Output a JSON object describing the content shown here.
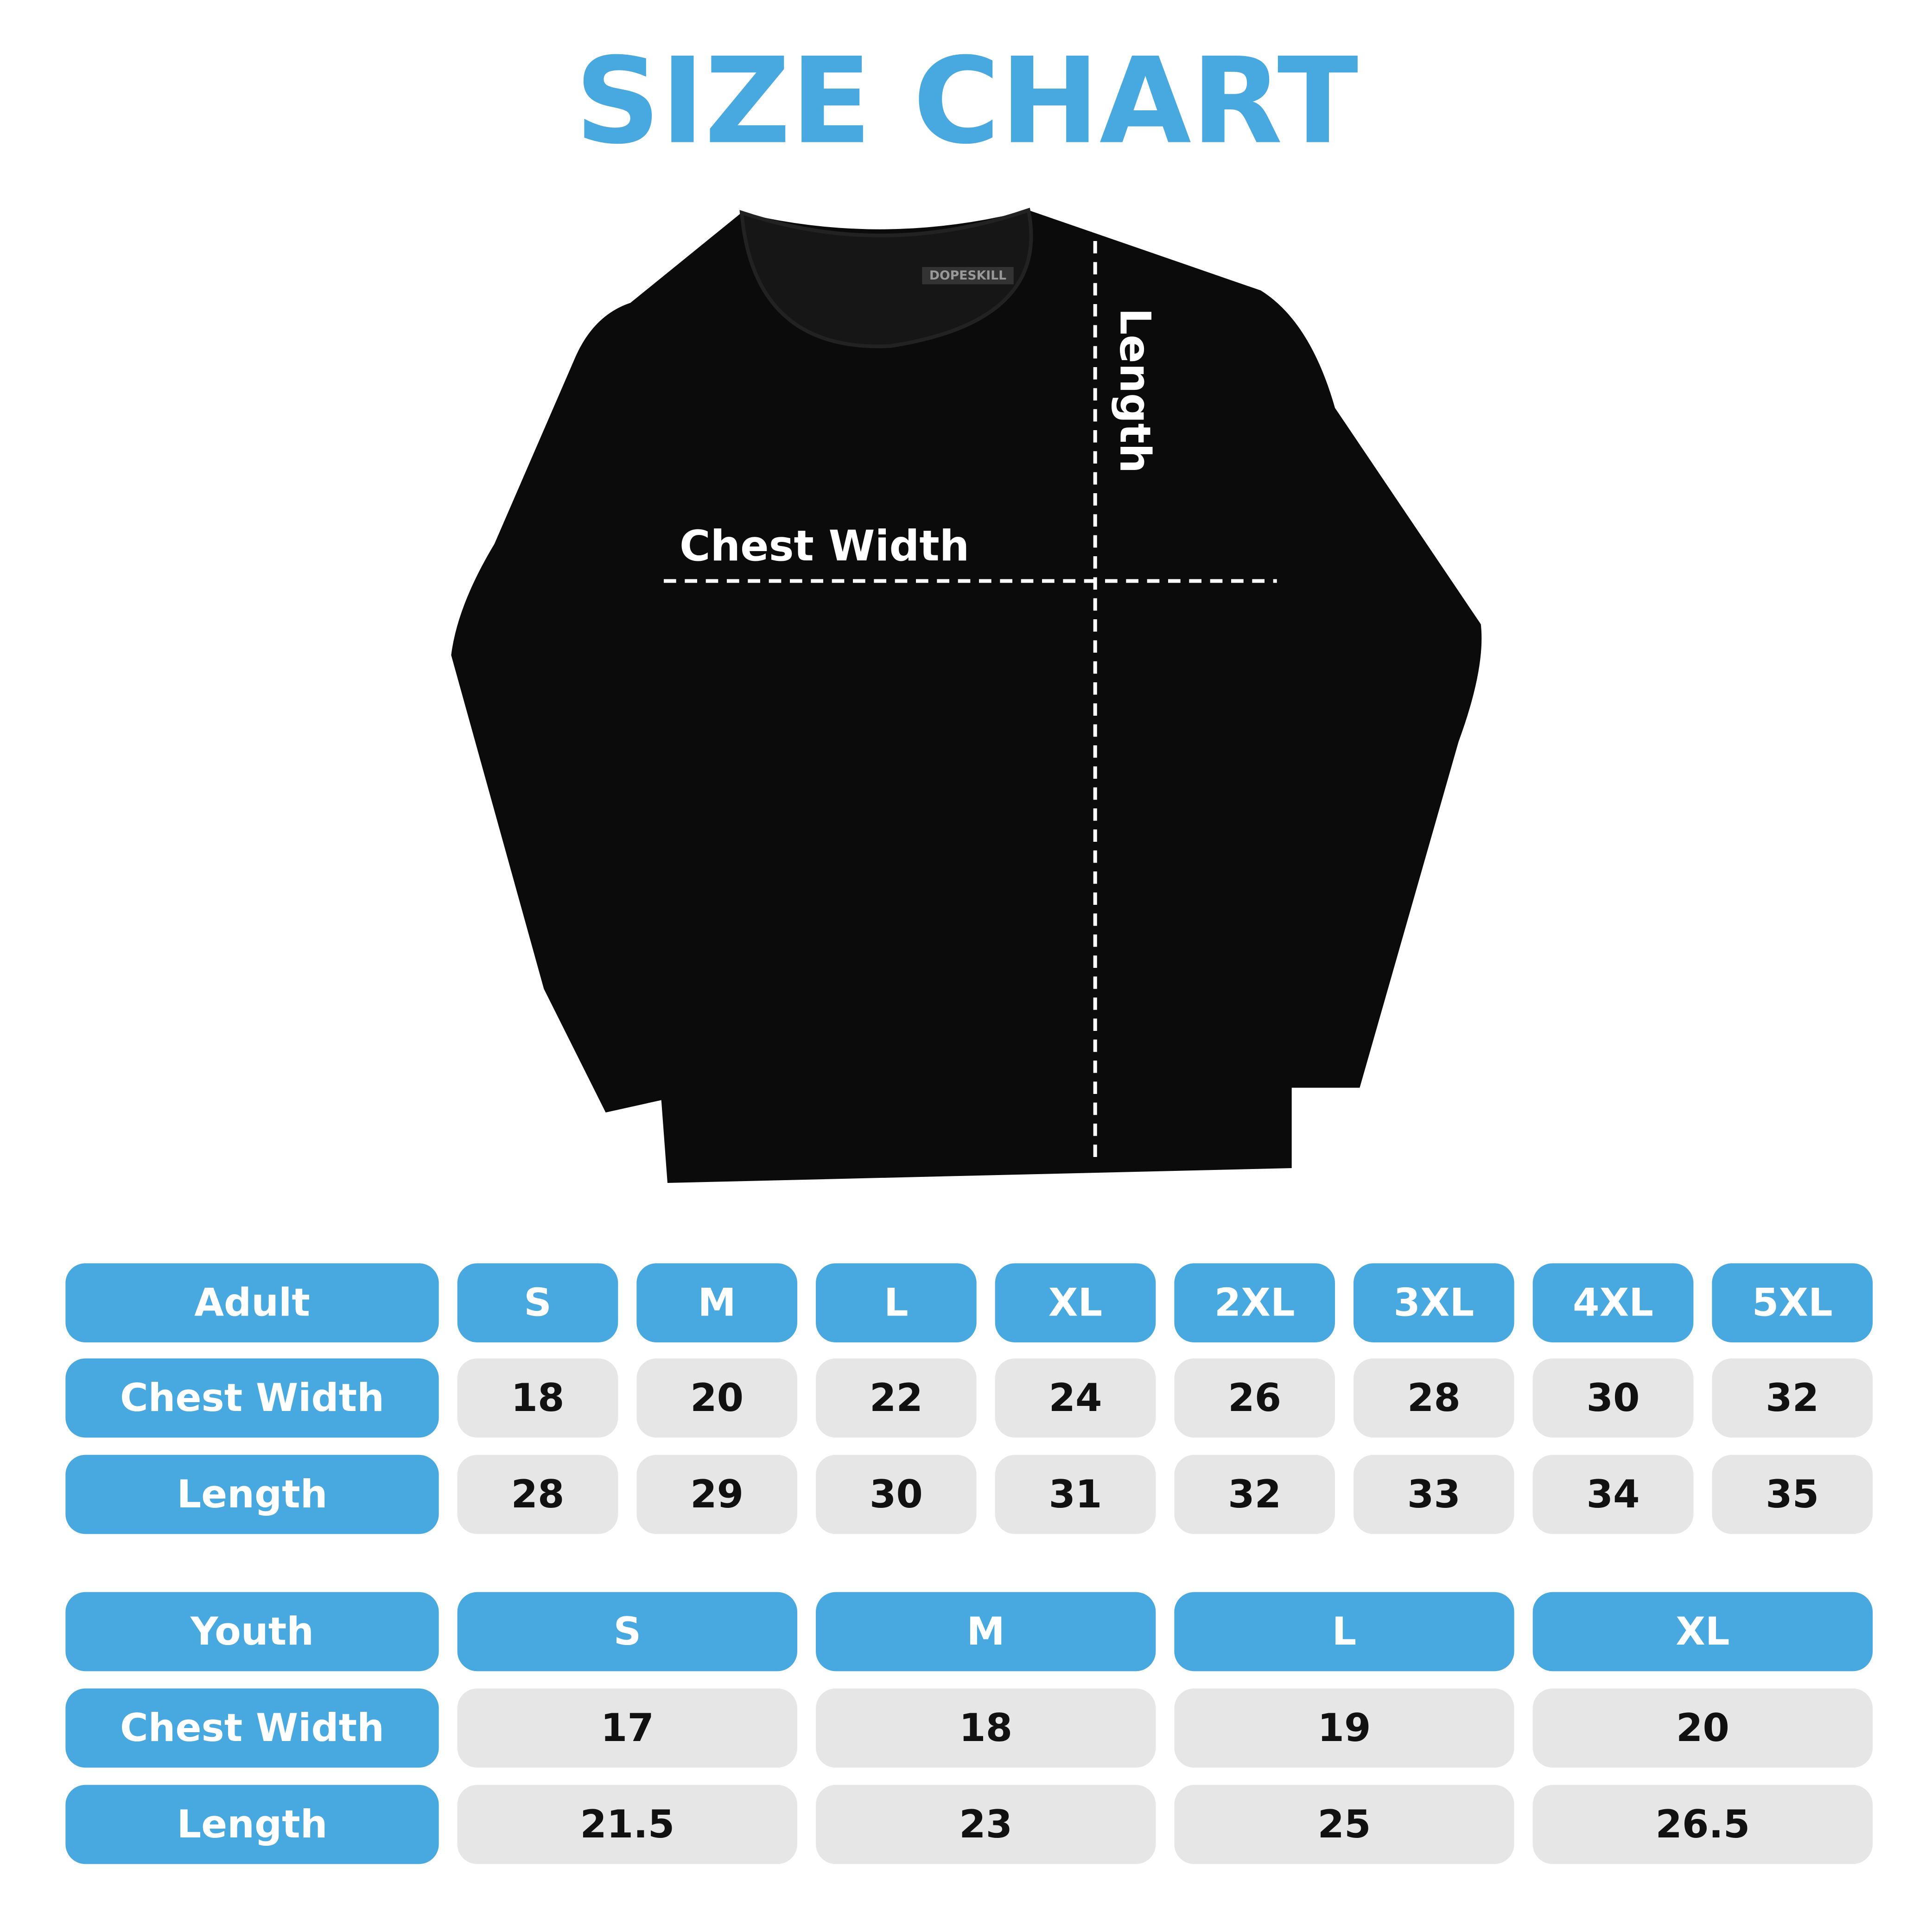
{
  "header": {
    "title": "SIZE CHART"
  },
  "image": {
    "brand": "DOPESKILL",
    "chest_label": "Chest Width",
    "length_label": "Length"
  },
  "tables": [
    {
      "header": [
        "Adult",
        "S",
        "M",
        "L",
        "XL",
        "2XL",
        "3XL",
        "4XL",
        "5XL"
      ],
      "rows": [
        [
          "Chest Width",
          18,
          20,
          22,
          24,
          26,
          28,
          30,
          32
        ],
        [
          "Length",
          28,
          29,
          30,
          31,
          32,
          33,
          34,
          35
        ]
      ]
    },
    {
      "header": [
        "Youth",
        "S",
        "M",
        "L",
        "XL"
      ],
      "rows": [
        [
          "Chest Width",
          17,
          18,
          19,
          20
        ],
        [
          "Length",
          21.5,
          23,
          25,
          26.5
        ]
      ]
    }
  ]
}
